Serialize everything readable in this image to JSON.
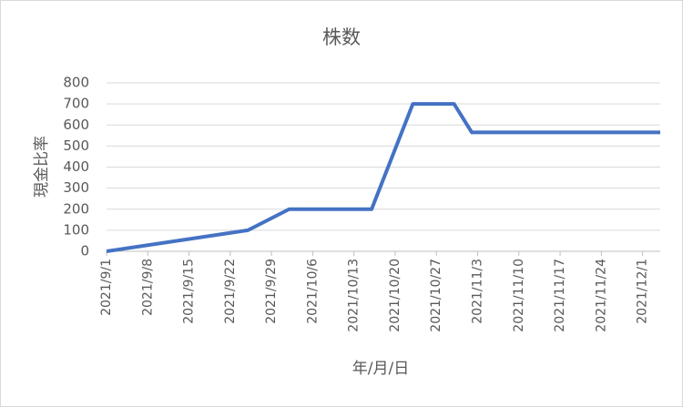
{
  "chart_data": {
    "type": "line",
    "title": "株数",
    "x_label": "年/月/日",
    "y_label": "現金比率",
    "x": [
      "2021/9/1",
      "2021/9/25",
      "2021/10/2",
      "2021/10/16",
      "2021/10/23",
      "2021/10/30",
      "2021/11/2",
      "2021/12/4"
    ],
    "series": [
      {
        "name": "株数",
        "color": "#4472c4",
        "values": [
          0,
          100,
          200,
          200,
          700,
          700,
          565,
          565
        ]
      }
    ],
    "xlim": [
      "2021/9/1",
      "2021/12/4"
    ],
    "xticks": [
      "2021/9/1",
      "2021/9/8",
      "2021/9/15",
      "2021/9/22",
      "2021/9/29",
      "2021/10/6",
      "2021/10/13",
      "2021/10/20",
      "2021/10/27",
      "2021/11/3",
      "2021/11/10",
      "2021/11/17",
      "2021/11/24",
      "2021/12/1"
    ],
    "ylim": [
      0,
      800
    ],
    "yticks": [
      0,
      100,
      200,
      300,
      400,
      500,
      600,
      700,
      800
    ],
    "grid": true
  }
}
